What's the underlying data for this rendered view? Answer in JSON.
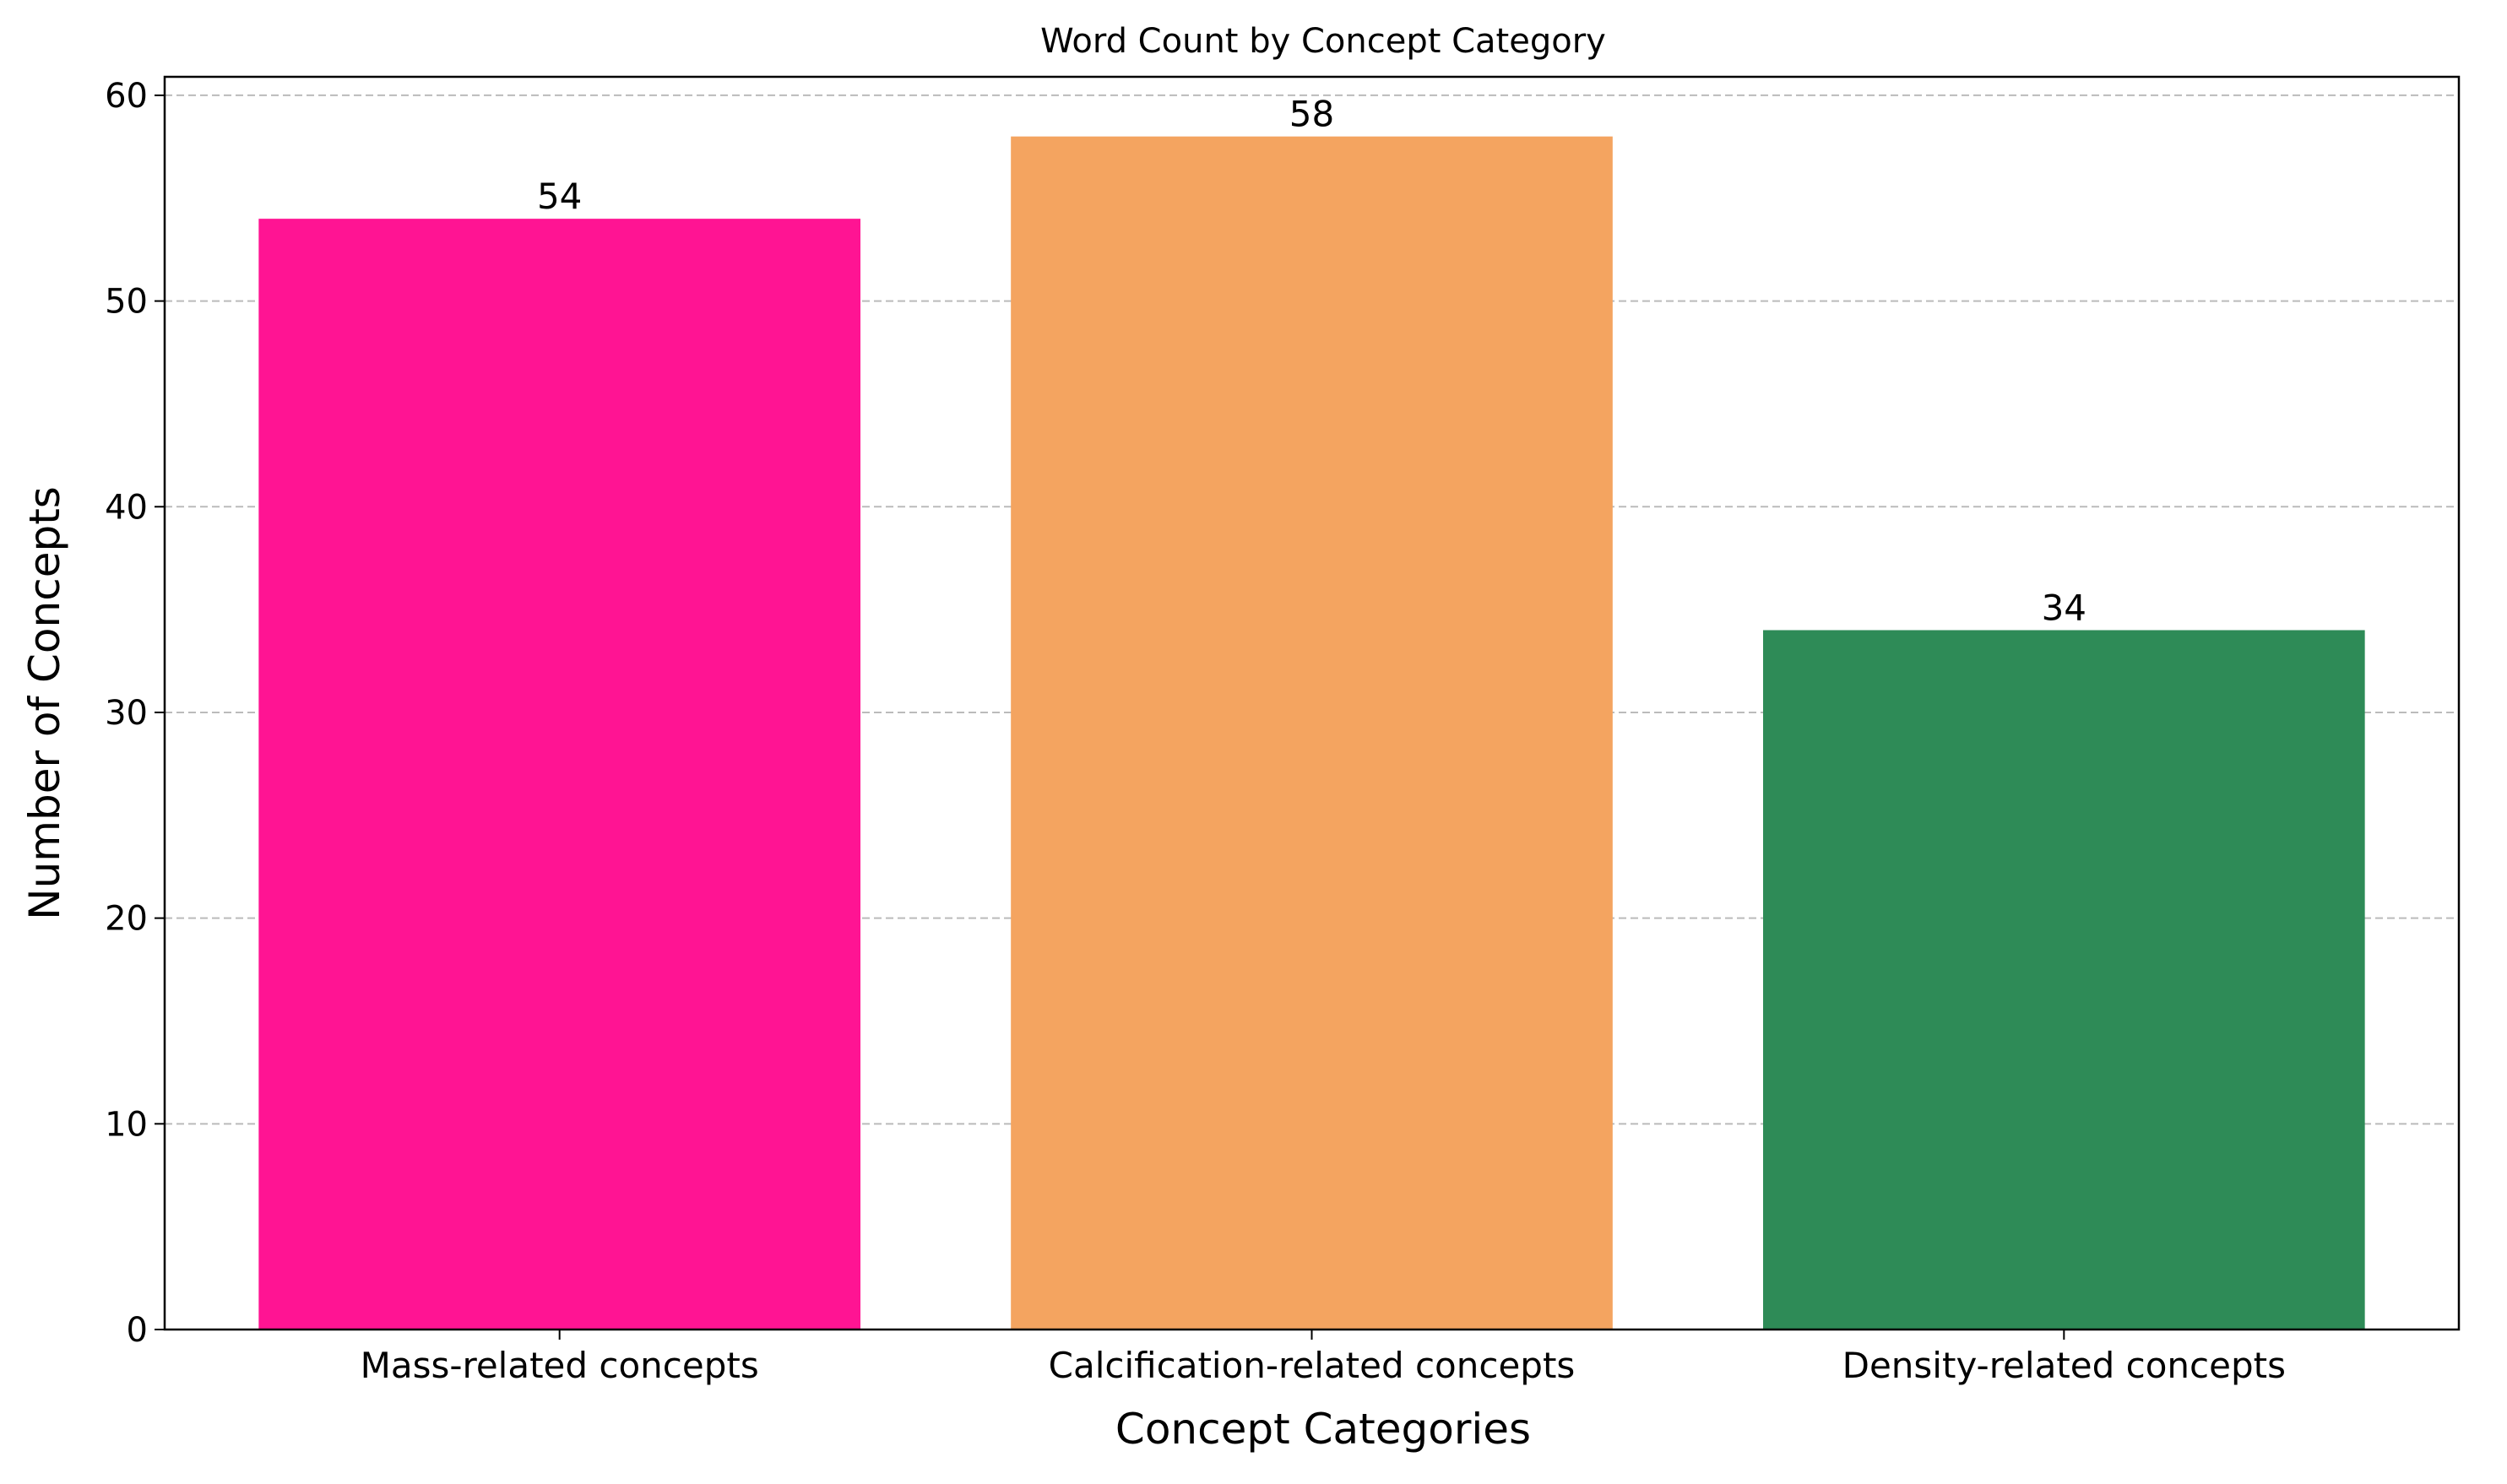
{
  "chart_data": {
    "type": "bar",
    "title": "Word Count by Concept Category",
    "x_label": "Concept Categories",
    "y_label": "Number of Concepts",
    "categories": [
      "Mass-related concepts",
      "Calcification-related concepts",
      "Density-related concepts"
    ],
    "values": [
      54,
      58,
      34
    ],
    "colors": [
      "#ff1493",
      "#f4a460",
      "#2e8b57"
    ],
    "ylim": [
      0,
      60.9
    ],
    "yticks": [
      0,
      10,
      20,
      30,
      40,
      50,
      60
    ],
    "grid": true
  }
}
